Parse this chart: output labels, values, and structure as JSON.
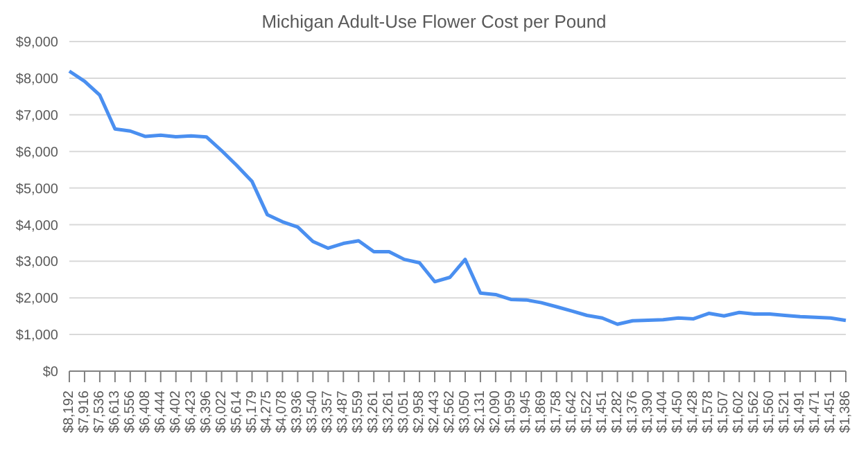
{
  "chart_data": {
    "type": "line",
    "title": "Michigan Adult-Use Flower Cost per Pound",
    "categories": [
      "$8,192",
      "$7,916",
      "$7,536",
      "$6,613",
      "$6,556",
      "$6,408",
      "$6,444",
      "$6,402",
      "$6,423",
      "$6,396",
      "$6,022",
      "$5,614",
      "$5,179",
      "$4,275",
      "$4,078",
      "$3,936",
      "$3,540",
      "$3,357",
      "$3,487",
      "$3,559",
      "$3,261",
      "$3,261",
      "$3,051",
      "$2,958",
      "$2,443",
      "$2,562",
      "$3,050",
      "$2,131",
      "$2,090",
      "$1,959",
      "$1,945",
      "$1,869",
      "$1,758",
      "$1,642",
      "$1,522",
      "$1,451",
      "$1,282",
      "$1,376",
      "$1,390",
      "$1,404",
      "$1,450",
      "$1,428",
      "$1,578",
      "$1,507",
      "$1,602",
      "$1,562",
      "$1,560",
      "$1,521",
      "$1,491",
      "$1,471",
      "$1,451",
      "$1,386"
    ],
    "series": [
      {
        "color": "#4a8ff0",
        "values": [
          8192,
          7916,
          7536,
          6613,
          6556,
          6408,
          6444,
          6402,
          6423,
          6396,
          6022,
          5614,
          5179,
          4275,
          4078,
          3936,
          3540,
          3357,
          3487,
          3559,
          3261,
          3261,
          3051,
          2958,
          2443,
          2562,
          3050,
          2131,
          2090,
          1959,
          1945,
          1869,
          1758,
          1642,
          1522,
          1451,
          1282,
          1376,
          1390,
          1404,
          1450,
          1428,
          1578,
          1507,
          1602,
          1562,
          1560,
          1521,
          1491,
          1471,
          1451,
          1386
        ]
      }
    ],
    "ylim": [
      0,
      9000
    ],
    "yticks": [
      {
        "value": 0,
        "label": "$0"
      },
      {
        "value": 1000,
        "label": "$1,000"
      },
      {
        "value": 2000,
        "label": "$2,000"
      },
      {
        "value": 3000,
        "label": "$3,000"
      },
      {
        "value": 4000,
        "label": "$4,000"
      },
      {
        "value": 5000,
        "label": "$5,000"
      },
      {
        "value": 6000,
        "label": "$6,000"
      },
      {
        "value": 7000,
        "label": "$7,000"
      },
      {
        "value": 8000,
        "label": "$8,000"
      },
      {
        "value": 9000,
        "label": "$9,000"
      }
    ],
    "grid": "y",
    "marker": "none",
    "line_style": "solid"
  }
}
